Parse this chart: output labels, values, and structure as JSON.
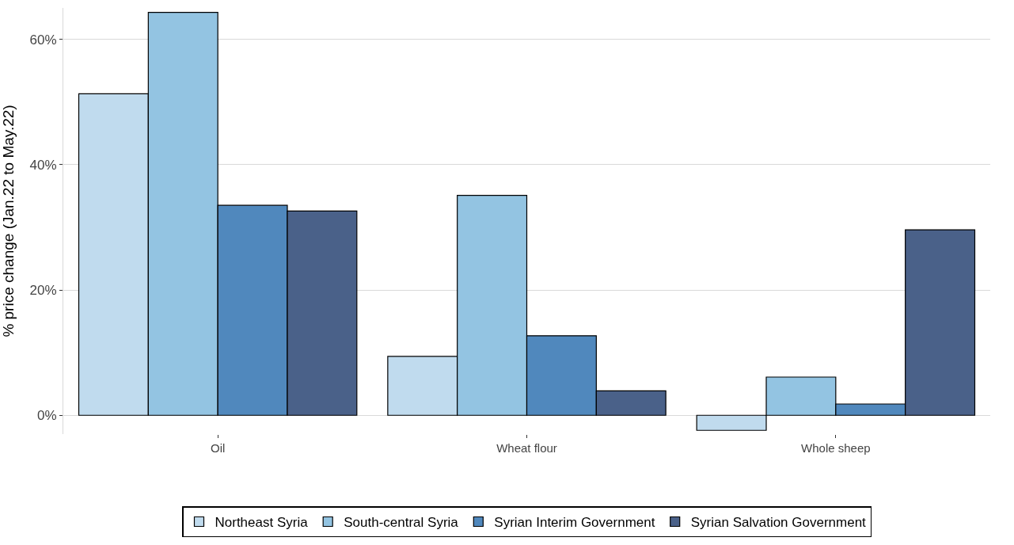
{
  "chart_data": {
    "type": "bar",
    "ylabel": "% price change (Jan.22 to May.22)",
    "categories": [
      "Oil",
      "Wheat flour",
      "Whole sheep"
    ],
    "series": [
      {
        "name": "Northeast Syria",
        "color": "#c0dbee",
        "values": [
          51.3,
          9.4,
          -2.4
        ]
      },
      {
        "name": "South-central Syria",
        "color": "#93c4e2",
        "values": [
          64.3,
          35.1,
          6.1
        ]
      },
      {
        "name": "Syrian Interim Government",
        "color": "#5088bd",
        "values": [
          33.5,
          12.7,
          1.8
        ]
      },
      {
        "name": "Syrian Salvation Government",
        "color": "#4a6189",
        "values": [
          32.6,
          3.9,
          29.6
        ]
      }
    ],
    "ylim": [
      -3,
      65
    ],
    "yticks": [
      {
        "value": 0,
        "label": "0%"
      },
      {
        "value": 20,
        "label": "20%"
      },
      {
        "value": 40,
        "label": "40%"
      },
      {
        "value": 60,
        "label": "60%"
      }
    ],
    "grid": "y",
    "legend": "bottom"
  }
}
